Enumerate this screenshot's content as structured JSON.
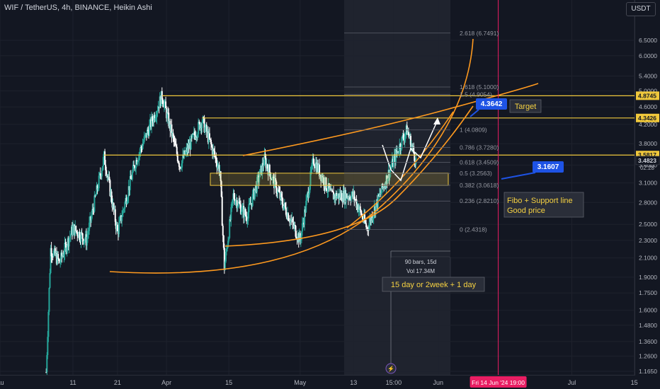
{
  "header": {
    "symbol_title": "WIF / TetherUS, 4h, BINANCE, Heikin Ashi",
    "currency_button": "USDT"
  },
  "colors": {
    "background": "#131722",
    "up_candle": "#26a69a",
    "down_candle": "#ffffff",
    "level_line": "#f0c83c",
    "curve": "#ff9a1f",
    "fib_label": "#9598a1",
    "callout_blue": "#1e53e5",
    "crosshair_pink": "#e91e63",
    "range_box": "#787b86"
  },
  "price_axis": {
    "ticks": [
      "6.5000",
      "6.0000",
      "5.4000",
      "5.0000",
      "4.6000",
      "4.2000",
      "3.8000",
      "3.4000",
      "3.1000",
      "2.8000",
      "2.5000",
      "2.3000",
      "2.1000",
      "1.9000",
      "1.7500",
      "1.6000",
      "1.4800",
      "1.3600",
      "1.2600",
      "1.1650"
    ],
    "highlight_labels": [
      {
        "text": "4.8745",
        "kind": "level"
      },
      {
        "text": "4.3426",
        "kind": "level"
      },
      {
        "text": "3.5817",
        "kind": "level"
      },
      {
        "text": "3.4823",
        "kind": "current"
      },
      {
        "text": "02:28",
        "kind": "countdown"
      }
    ]
  },
  "time_axis": {
    "ticks": [
      "11",
      "21",
      "Apr",
      "15",
      "May",
      "13",
      "15:00",
      "Jun",
      "Jul",
      "15",
      "Au"
    ],
    "cursor_label": "Fri 14 Jun '24   19:00"
  },
  "fib_levels": [
    {
      "label": "2.618 (6.7491)",
      "price": 6.7491
    },
    {
      "label": "1.618 (5.1000)",
      "price": 5.1
    },
    {
      "label": "1.5 (4.9054)",
      "price": 4.9054
    },
    {
      "label": "1 (4.0809)",
      "price": 4.0809
    },
    {
      "label": "0.786 (3.7280)",
      "price": 3.728
    },
    {
      "label": "0.618 (3.4509)",
      "price": 3.4509
    },
    {
      "label": "0.5 (3.2563)",
      "price": 3.2563
    },
    {
      "label": "0.382 (3.0618)",
      "price": 3.0618
    },
    {
      "label": "0.236 (2.8210)",
      "price": 2.821
    },
    {
      "label": "0 (2.4318)",
      "price": 2.4318
    }
  ],
  "annotations": {
    "callout_top": "4.3642",
    "callout_mid": "3.1607",
    "target": "Target",
    "fibo_line1": "Fibo + Support line",
    "fibo_line2": "Good price",
    "range_bars": "90 bars, 15d",
    "range_vol": "Vol 17.34M",
    "range_note": "15 day or 2week + 1 day"
  },
  "chart_data": {
    "type": "candlestick",
    "title": "WIF / TetherUS, 4h, BINANCE, Heikin Ashi",
    "price_scale": "log",
    "y_range": [
      1.13,
      7.3
    ],
    "horizontal_levels": [
      4.8745,
      4.3426,
      3.5817
    ],
    "current_price": 3.4823,
    "support_zone": [
      3.06,
      3.26
    ],
    "cursor_date": "Fri 14 Jun '24 19:00",
    "approx_close_path": [
      {
        "date": "Mar 05",
        "close": 1.16
      },
      {
        "date": "Mar 06",
        "close": 2.2
      },
      {
        "date": "Mar 08",
        "close": 2.05
      },
      {
        "date": "Mar 11",
        "close": 2.45
      },
      {
        "date": "Mar 14",
        "close": 2.3
      },
      {
        "date": "Mar 18",
        "close": 3.55
      },
      {
        "date": "Mar 21",
        "close": 2.4
      },
      {
        "date": "Mar 25",
        "close": 3.45
      },
      {
        "date": "Mar 31",
        "close": 4.87
      },
      {
        "date": "Apr 04",
        "close": 3.4
      },
      {
        "date": "Apr 09",
        "close": 4.3
      },
      {
        "date": "Apr 13",
        "close": 3.3
      },
      {
        "date": "Apr 14",
        "close": 2.0
      },
      {
        "date": "Apr 16",
        "close": 2.9
      },
      {
        "date": "Apr 19",
        "close": 2.6
      },
      {
        "date": "Apr 23",
        "close": 3.5
      },
      {
        "date": "Apr 27",
        "close": 2.8
      },
      {
        "date": "May 01",
        "close": 2.3
      },
      {
        "date": "May 04",
        "close": 3.5
      },
      {
        "date": "May 08",
        "close": 2.9
      },
      {
        "date": "May 13",
        "close": 2.9
      },
      {
        "date": "May 16",
        "close": 2.45
      },
      {
        "date": "May 20",
        "close": 3.1
      },
      {
        "date": "May 24",
        "close": 3.9
      },
      {
        "date": "May 25",
        "close": 4.08
      },
      {
        "date": "May 27",
        "close": 3.48
      }
    ]
  }
}
